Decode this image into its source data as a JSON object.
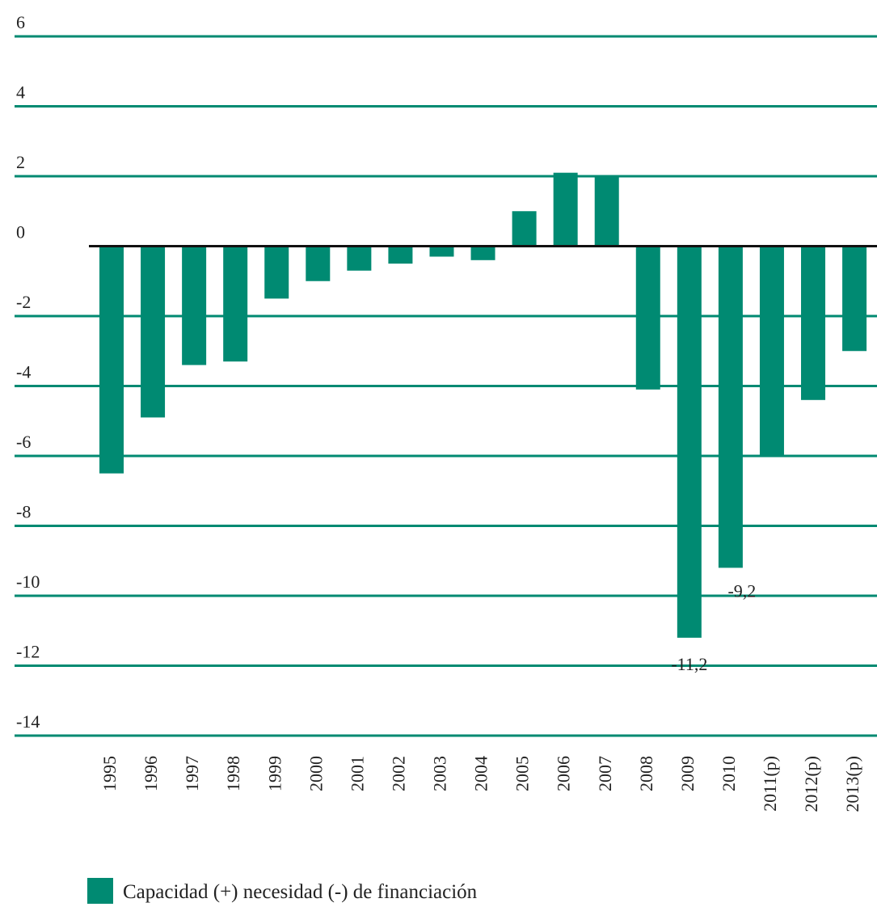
{
  "chart_data": {
    "type": "bar",
    "categories": [
      "1995",
      "1996",
      "1997",
      "1998",
      "1999",
      "2000",
      "2001",
      "2002",
      "2003",
      "2004",
      "2005",
      "2006",
      "2007",
      "2008",
      "2009",
      "2010",
      "2011(p)",
      "2012(p)",
      "2013(p)"
    ],
    "series": [
      {
        "name": "Capacidad (+) necesidad (-) de financiación",
        "color": "#008a72",
        "values": [
          -6.5,
          -4.9,
          -3.4,
          -3.3,
          -1.5,
          -1.0,
          -0.7,
          -0.5,
          -0.3,
          -0.4,
          1.0,
          2.1,
          2.0,
          -4.1,
          -11.2,
          -9.2,
          -6.0,
          -4.4,
          -3.0
        ],
        "value_labels": [
          null,
          null,
          null,
          null,
          null,
          null,
          null,
          null,
          null,
          null,
          null,
          null,
          null,
          null,
          "-11,2",
          "-9,2",
          null,
          null,
          null
        ]
      }
    ],
    "ylim": [
      -14,
      6
    ],
    "yticks": [
      6,
      4,
      2,
      0,
      -2,
      -4,
      -6,
      -8,
      -10,
      -12,
      -14
    ],
    "grid": true,
    "legend": "bottom"
  }
}
